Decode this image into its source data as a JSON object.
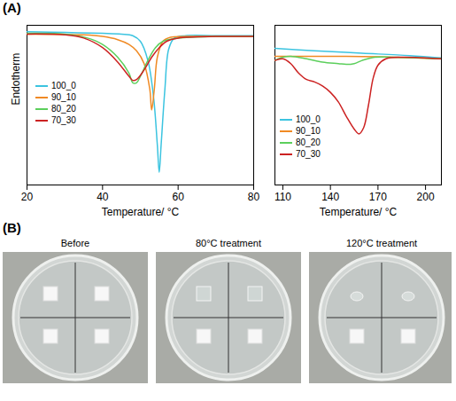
{
  "panel_labels": [
    "(A)",
    "(B)"
  ],
  "chart_data": [
    {
      "type": "line",
      "xlabel": "Temperature/ °C",
      "ylabel": "Endotherm",
      "xlim": [
        20,
        80
      ],
      "xticks": [
        20,
        40,
        60,
        80
      ],
      "ylim": [
        0,
        100
      ],
      "tick_labels": "x",
      "legend": "left",
      "series": [
        {
          "name": "100_0",
          "color": "#3cc4e0",
          "x": [
            20,
            30,
            40,
            45,
            48,
            50,
            52,
            53.5,
            54.5,
            55,
            55.5,
            56.5,
            57.5,
            59,
            62,
            70,
            80
          ],
          "values": [
            96,
            95.5,
            95,
            94.5,
            93.5,
            90,
            78,
            55,
            25,
            8,
            25,
            60,
            85,
            92,
            93.5,
            93.5,
            93.5
          ]
        },
        {
          "name": "90_10",
          "color": "#f08a24",
          "x": [
            20,
            35,
            40,
            44,
            47,
            49,
            51,
            52.5,
            53,
            53.7,
            54.5,
            56,
            58,
            62,
            80
          ],
          "values": [
            94.5,
            94,
            93,
            91,
            88,
            84,
            76,
            60,
            47,
            60,
            80,
            90,
            92.5,
            93,
            93
          ]
        },
        {
          "name": "80_20",
          "color": "#5ccf5c",
          "x": [
            20,
            30,
            36,
            40,
            44,
            47,
            48,
            49,
            50,
            52,
            54,
            56,
            60,
            70,
            80
          ],
          "values": [
            95,
            94.5,
            92,
            88,
            80,
            70,
            64,
            64,
            68,
            78,
            86,
            90,
            92,
            93,
            93
          ]
        },
        {
          "name": "70_30",
          "color": "#cc2222",
          "x": [
            20,
            30,
            35,
            40,
            44,
            47,
            48,
            49,
            51,
            53,
            55,
            57,
            60,
            70,
            80
          ],
          "values": [
            94.5,
            94,
            92,
            86,
            77,
            68,
            65.5,
            66,
            72,
            80,
            86,
            90,
            92,
            93,
            93
          ]
        }
      ]
    },
    {
      "type": "line",
      "xlabel": "Temperature/ °C",
      "xlim": [
        105,
        210
      ],
      "xticks": [
        110,
        140,
        170,
        200
      ],
      "ylim": [
        0,
        100
      ],
      "tick_labels": "x",
      "legend": "left",
      "series": [
        {
          "name": "100_0",
          "color": "#3cc4e0",
          "x": [
            105,
            130,
            160,
            190,
            210
          ],
          "values": [
            85.5,
            84,
            82.5,
            81,
            79.5
          ]
        },
        {
          "name": "90_10",
          "color": "#f08a24",
          "x": [
            105,
            150,
            180,
            210
          ],
          "values": [
            80.5,
            80.5,
            80,
            79
          ]
        },
        {
          "name": "80_20",
          "color": "#5ccf5c",
          "x": [
            105,
            110,
            115,
            125,
            135,
            145,
            150,
            155,
            160,
            168,
            180,
            210
          ],
          "values": [
            78,
            80,
            80.5,
            79,
            77,
            76,
            75.5,
            76,
            78,
            80,
            80,
            79
          ]
        },
        {
          "name": "70_30",
          "color": "#cc2222",
          "x": [
            105,
            110,
            115,
            120,
            125,
            130,
            135,
            140,
            145,
            150,
            155,
            158,
            161,
            164,
            167,
            170,
            175,
            185,
            210
          ],
          "values": [
            78,
            79,
            76,
            70,
            66,
            64.5,
            62,
            58,
            52,
            43,
            35,
            32,
            36,
            50,
            67,
            75,
            79,
            80,
            79
          ]
        }
      ]
    }
  ],
  "photos": {
    "titles": [
      "Before",
      "80°C treatment",
      "120°C treatment"
    ]
  }
}
